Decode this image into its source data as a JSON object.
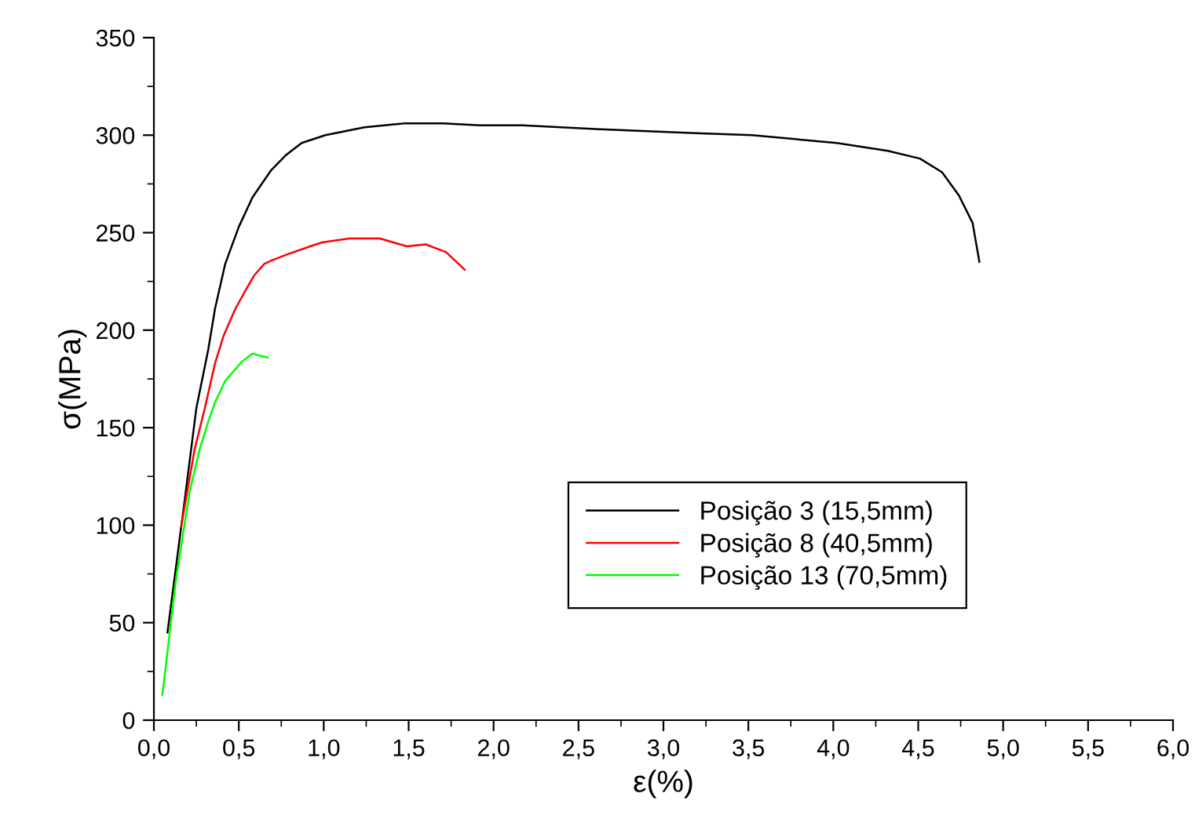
{
  "chart_data": {
    "type": "line",
    "xlabel": "ε(%)",
    "ylabel": "σ(MPa)",
    "xlim": [
      0,
      6
    ],
    "ylim": [
      0,
      350
    ],
    "xticks": [
      {
        "value": 0,
        "label": "0,0"
      },
      {
        "value": 0.5,
        "label": "0,5"
      },
      {
        "value": 1,
        "label": "1,0"
      },
      {
        "value": 1.5,
        "label": "1,5"
      },
      {
        "value": 2,
        "label": "2,0"
      },
      {
        "value": 2.5,
        "label": "2,5"
      },
      {
        "value": 3,
        "label": "3,0"
      },
      {
        "value": 3.5,
        "label": "3,5"
      },
      {
        "value": 4,
        "label": "4,0"
      },
      {
        "value": 4.5,
        "label": "4,5"
      },
      {
        "value": 5,
        "label": "5,0"
      },
      {
        "value": 5.5,
        "label": "5,5"
      },
      {
        "value": 6,
        "label": "6,0"
      }
    ],
    "yticks": [
      0,
      50,
      100,
      150,
      200,
      250,
      300,
      350
    ],
    "grid": false,
    "legend": "bottom right",
    "marker": "none",
    "line_style": "solid",
    "series": [
      {
        "name": "Posição 3 (15,5mm)",
        "color": "#000000",
        "x": [
          0.08,
          0.18,
          0.25,
          0.32,
          0.36,
          0.42,
          0.5,
          0.58,
          0.69,
          0.78,
          0.87,
          1.01,
          1.24,
          1.47,
          1.7,
          1.92,
          2.17,
          2.63,
          3.19,
          3.52,
          4.02,
          4.32,
          4.51,
          4.64,
          4.74,
          4.82,
          4.86
        ],
        "values": [
          45,
          112,
          160,
          190,
          211,
          234,
          253,
          268,
          282,
          290,
          296,
          300,
          304,
          306,
          306,
          305,
          305,
          303,
          301,
          300,
          296,
          292,
          288,
          281,
          269,
          255,
          235
        ]
      },
      {
        "name": "Posição 8 (40,5mm)",
        "color": "#ff0000",
        "x": [
          0.16,
          0.24,
          0.3,
          0.36,
          0.41,
          0.48,
          0.55,
          0.59,
          0.65,
          0.7,
          0.79,
          0.92,
          0.99,
          1.15,
          1.33,
          1.49,
          1.6,
          1.72,
          1.83
        ],
        "values": [
          99,
          139,
          160,
          183,
          197,
          211,
          222,
          228,
          234,
          236,
          239,
          243,
          245,
          247,
          247,
          243,
          244,
          240,
          231
        ]
      },
      {
        "name": "Posição 13 (70,5mm)",
        "color": "#00ff00",
        "x": [
          0.05,
          0.13,
          0.21,
          0.27,
          0.32,
          0.36,
          0.42,
          0.52,
          0.58,
          0.62,
          0.67
        ],
        "values": [
          13,
          72,
          117,
          139,
          153,
          163,
          174,
          184,
          188,
          187,
          186
        ]
      }
    ]
  }
}
